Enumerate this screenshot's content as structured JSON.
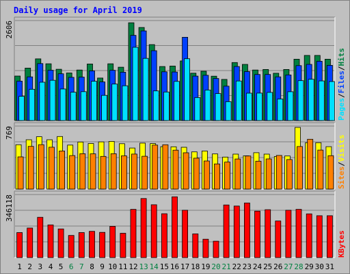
{
  "chart_data": {
    "type": "bar",
    "title": "Daily usage for April 2019",
    "categories": [
      "1",
      "2",
      "3",
      "4",
      "5",
      "6",
      "7",
      "8",
      "9",
      "10",
      "11",
      "12",
      "13",
      "14",
      "15",
      "16",
      "17",
      "18",
      "19",
      "20",
      "21",
      "22",
      "23",
      "24",
      "25",
      "26",
      "27",
      "28",
      "29",
      "30",
      "31"
    ],
    "weekend_days": [
      "6",
      "7",
      "13",
      "14",
      "20",
      "21",
      "27",
      "28"
    ],
    "panels": [
      {
        "name": "requests",
        "ymax_label": "2606",
        "ylim": [
          0,
          2606
        ],
        "legend": [
          "Pages",
          "Files",
          "Hits"
        ],
        "series": [
          {
            "name": "Hits",
            "color": "#008040",
            "values": [
              1160,
              1368,
              1609,
              1480,
              1337,
              1240,
              1318,
              1475,
              1108,
              1480,
              1391,
              2548,
              2425,
              1980,
              1409,
              1421,
              1555,
              1236,
              1285,
              1156,
              1072,
              1512,
              1463,
              1317,
              1331,
              1233,
              1331,
              1600,
              1697,
              1697,
              1600
            ]
          },
          {
            "name": "Files",
            "color": "#0040ff",
            "values": [
              1028,
              1138,
              1485,
              1312,
              1220,
              1126,
              1131,
              1294,
              1007,
              1311,
              1261,
              2220,
              2336,
              1820,
              1270,
              1265,
              2171,
              1159,
              1180,
              1096,
              896,
              1409,
              1276,
              1201,
              1202,
              1138,
              1189,
              1431,
              1463,
              1545,
              1438
            ]
          },
          {
            "name": "Pages",
            "color": "#00e0ff",
            "values": [
              632,
              816,
              1000,
              1050,
              822,
              739,
              754,
              1025,
              656,
              952,
              906,
              1909,
              1621,
              773,
              745,
              1021,
              1612,
              599,
              796,
              703,
              493,
              1032,
              714,
              715,
              734,
              563,
              752,
              1041,
              1077,
              1034,
              1018
            ]
          }
        ]
      },
      {
        "name": "visits",
        "ymax_label": "769",
        "ylim": [
          0,
          769
        ],
        "legend": [
          "Sites",
          "Visits"
        ],
        "series": [
          {
            "name": "Visits",
            "color": "#ffff00",
            "values": [
              541,
              602,
              639,
              602,
              641,
              537,
              574,
              556,
              576,
              582,
              553,
              501,
              561,
              555,
              517,
              516,
              510,
              454,
              465,
              429,
              390,
              426,
              405,
              444,
              426,
              398,
              404,
              752,
              566,
              566,
              517
            ]
          },
          {
            "name": "Sites",
            "color": "#ff8000",
            "values": [
              393,
              521,
              542,
              511,
              465,
              409,
              431,
              430,
              399,
              431,
              405,
              427,
              400,
              537,
              541,
              475,
              443,
              377,
              343,
              307,
              329,
              367,
              404,
              340,
              368,
              410,
              360,
              519,
              608,
              476,
              407
            ]
          }
        ]
      },
      {
        "name": "kbytes",
        "ymax_label": "346118",
        "ylim": [
          0,
          346118
        ],
        "legend": [
          "KBytes"
        ],
        "series": [
          {
            "name": "KBytes",
            "color": "#ff0000",
            "values": [
              137306,
              162089,
              221128,
              179470,
              157254,
              121633,
              137306,
              144101,
              138512,
              171390,
              133497,
              264826,
              324234,
              290037,
              240900,
              333551,
              260000,
              130000,
              101000,
              90000,
              288750,
              283000,
              300000,
              255000,
              263000,
              201000,
              260000,
              265000,
              240000,
              230000,
              230000
            ]
          }
        ]
      }
    ],
    "colors": {
      "title": "#0000ff",
      "Pages": "#00e0ff",
      "Files": "#0040ff",
      "Hits": "#008040",
      "Sites": "#ff8000",
      "Visits": "#ffff00",
      "KBytes": "#ff0000",
      "weekday_label": "#000000",
      "weekend_label": "#008040"
    }
  }
}
